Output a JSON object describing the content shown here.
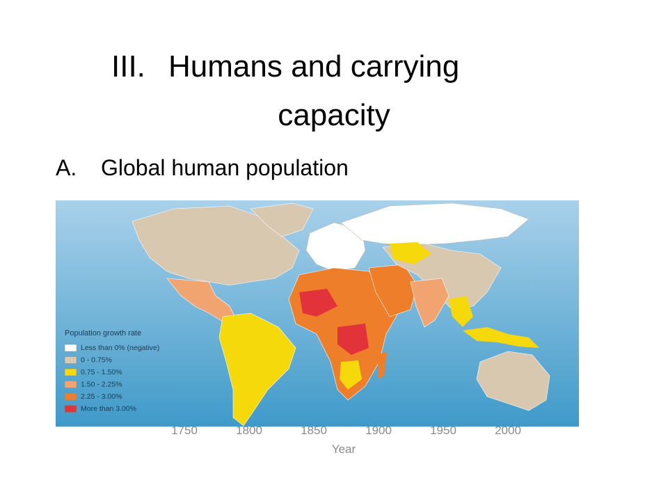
{
  "slide": {
    "title": {
      "number": "III.",
      "line1": "Humans and carrying",
      "line2": "capacity"
    },
    "bullet": {
      "marker": "A.",
      "text": "Global human population"
    },
    "map": {
      "legend": {
        "title": "Population growth rate",
        "items": [
          {
            "label": "Less than 0% (negative)",
            "color": "#ffffff"
          },
          {
            "label": "0 - 0.75%",
            "color": "#d8c8b0"
          },
          {
            "label": "0.75 - 1.50%",
            "color": "#f5d90a"
          },
          {
            "label": "1.50 - 2.25%",
            "color": "#f2a470"
          },
          {
            "label": "2.25 - 3.00%",
            "color": "#ee7e2a"
          },
          {
            "label": "More than 3.00%",
            "color": "#e2323a"
          }
        ]
      }
    },
    "background_chart": {
      "x_ticks": [
        "1750",
        "1800",
        "1850",
        "1900",
        "1950",
        "2000"
      ],
      "x_label": "Year"
    }
  }
}
